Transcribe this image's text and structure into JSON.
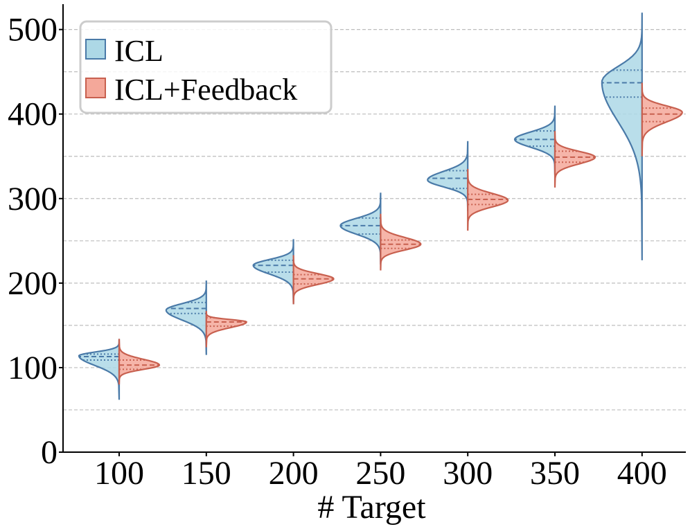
{
  "chart_data": {
    "type": "violin",
    "style": "split",
    "title": "",
    "xlabel": "# Target",
    "ylabel": "",
    "categories": [
      "100",
      "150",
      "200",
      "250",
      "300",
      "350",
      "400"
    ],
    "y_ticks": [
      "0",
      "100",
      "200",
      "300",
      "400",
      "500"
    ],
    "ylim": [
      0,
      530
    ],
    "grid": "horizontal dashed, every 50",
    "legend_position": "top-left",
    "series": [
      {
        "name": "ICL",
        "side": "left",
        "fill": "#add8e6",
        "edge": "#4a7aa8",
        "min": [
          62,
          115,
          175,
          222,
          285,
          328,
          227
        ],
        "max": [
          134,
          203,
          252,
          307,
          368,
          410,
          520
        ],
        "mode": [
          114,
          168,
          221,
          268,
          322,
          370,
          438
        ],
        "q1": [
          109,
          164,
          213,
          258,
          312,
          362,
          420
        ],
        "median": [
          113,
          170,
          221,
          268,
          324,
          370,
          437
        ],
        "q3": [
          116,
          177,
          227,
          277,
          333,
          380,
          452
        ]
      },
      {
        "name": "ICL+Feedback",
        "side": "right",
        "fill": "#f4a89a",
        "edge": "#c8604f",
        "min": [
          80,
          124,
          175,
          215,
          262,
          313,
          350
        ],
        "max": [
          134,
          167,
          233,
          282,
          335,
          380,
          437
        ],
        "mode": [
          103,
          154,
          205,
          246,
          298,
          349,
          402
        ],
        "q1": [
          98,
          149,
          199,
          241,
          293,
          343,
          391
        ],
        "median": [
          103,
          154,
          205,
          246,
          299,
          349,
          400
        ],
        "q3": [
          109,
          159,
          210,
          251,
          305,
          356,
          407
        ]
      }
    ]
  }
}
